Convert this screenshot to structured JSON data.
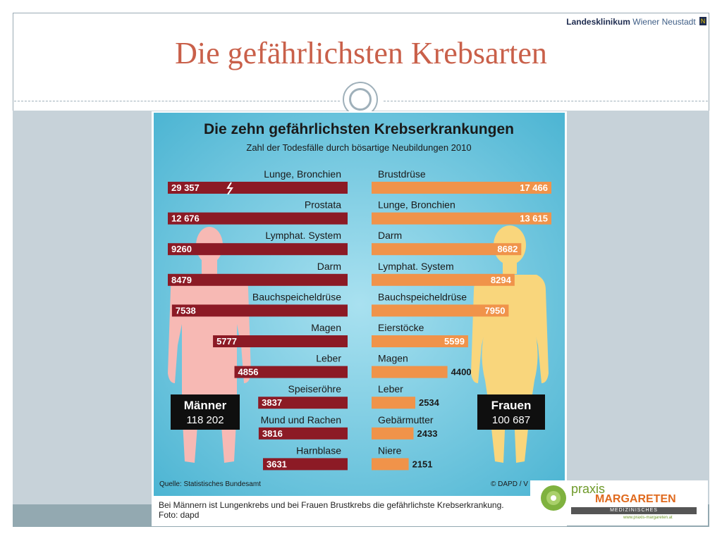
{
  "header": {
    "logo_strong": "Landesklinikum",
    "logo_light": "Wiener Neustadt",
    "logo_mark": "N",
    "title": "Die gefährlichsten Krebsarten"
  },
  "infographic": {
    "caption_line1": "Bei Männern ist Lungenkrebs und bei Frauen Brustkrebs die gefährlichste Krebserkrankung.",
    "caption_line2": "Foto: dapd"
  },
  "praxis_logo": {
    "word": "praxis",
    "name": "MARGARETEN",
    "subtitle": "MEDIZINISCHES VERSORGUNGSZENTRUM",
    "url": "www.praxis-margareten.at"
  },
  "chart_data": {
    "type": "bar",
    "title": "Die zehn gefährlichsten Krebserkrankungen",
    "subtitle": "Zahl der Todesfälle durch bösartige Neubildungen 2010",
    "source": "Quelle: Statistisches Bundesamt",
    "credit": "© DAPD / V",
    "series": [
      {
        "name": "Männer",
        "total": "118 202",
        "color": "#8c1a25",
        "categories": [
          "Lunge, Bronchien",
          "Prostata",
          "Lymphat. System",
          "Darm",
          "Bauchspeicheldrüse",
          "Magen",
          "Leber",
          "Speiseröhre",
          "Mund und Rachen",
          "Harnblase"
        ],
        "labels": [
          "29 357",
          "12 676",
          "9260",
          "8479",
          "7538",
          "5777",
          "4856",
          "3837",
          "3816",
          "3631"
        ],
        "values": [
          29357,
          12676,
          9260,
          8479,
          7538,
          5777,
          4856,
          3837,
          3816,
          3631
        ]
      },
      {
        "name": "Frauen",
        "total": "100 687",
        "color": "#f0934a",
        "categories": [
          "Brustdrüse",
          "Lunge, Bronchien",
          "Darm",
          "Lymphat. System",
          "Bauchspeicheldrüse",
          "Eierstöcke",
          "Magen",
          "Leber",
          "Gebärmutter",
          "Niere"
        ],
        "labels": [
          "17 466",
          "13 615",
          "8682",
          "8294",
          "7950",
          "5599",
          "4400",
          "2534",
          "2433",
          "2151"
        ],
        "values": [
          17466,
          13615,
          8682,
          8294,
          7950,
          5599,
          4400,
          2534,
          2433,
          2151
        ]
      }
    ],
    "axis_break": "Männer, Lunge, Bronchien"
  }
}
